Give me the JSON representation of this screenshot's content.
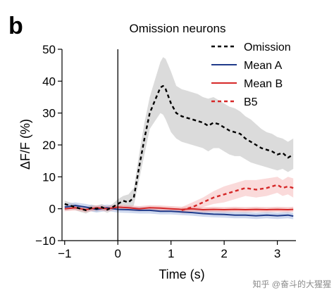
{
  "panel_letter": "b",
  "watermark": "知乎 @奋斗的大猩猩",
  "chart_data": {
    "type": "line",
    "title": "Omission neurons",
    "xlabel": "Time (s)",
    "ylabel": "ΔF/F (%)",
    "xlim": [
      -1.05,
      3.35
    ],
    "ylim": [
      -10,
      50
    ],
    "xticks": [
      -1,
      0,
      1,
      2,
      3
    ],
    "xtick_labels": [
      "−1",
      "0",
      "1",
      "2",
      "3"
    ],
    "yticks": [
      -10,
      0,
      10,
      20,
      30,
      40,
      50
    ],
    "ytick_labels": [
      "−10",
      "0",
      "10",
      "20",
      "30",
      "40",
      "50"
    ],
    "event_line_x": 0,
    "grid": false,
    "legend_position": "top-right",
    "series": [
      {
        "name": "Omission",
        "color": "#000000",
        "style": "dashed",
        "x": [
          -1.0,
          -0.9,
          -0.8,
          -0.7,
          -0.6,
          -0.5,
          -0.4,
          -0.3,
          -0.2,
          -0.1,
          0.0,
          0.1,
          0.2,
          0.3,
          0.4,
          0.5,
          0.6,
          0.7,
          0.8,
          0.85,
          0.9,
          1.0,
          1.1,
          1.2,
          1.3,
          1.4,
          1.5,
          1.6,
          1.7,
          1.8,
          1.9,
          2.0,
          2.1,
          2.2,
          2.3,
          2.4,
          2.5,
          2.6,
          2.7,
          2.8,
          2.9,
          3.0,
          3.1,
          3.2,
          3.3
        ],
        "values": [
          1.5,
          1.0,
          0.5,
          0.0,
          -0.5,
          0.3,
          0.0,
          0.5,
          -0.3,
          0.5,
          1.5,
          2.5,
          2.0,
          3.5,
          13.0,
          22.0,
          30.0,
          34.0,
          38.0,
          38.5,
          37.5,
          33.0,
          30.0,
          29.0,
          28.5,
          28.0,
          27.5,
          27.0,
          26.0,
          27.0,
          26.5,
          25.5,
          24.5,
          24.0,
          23.5,
          22.0,
          21.0,
          20.0,
          19.0,
          18.5,
          18.0,
          17.0,
          17.5,
          16.0,
          17.0
        ],
        "upper": [
          2.5,
          2.0,
          1.5,
          1.0,
          0.5,
          1.3,
          1.0,
          1.5,
          0.7,
          1.5,
          3.0,
          4.0,
          4.5,
          6.5,
          17.0,
          27.0,
          35.0,
          40.5,
          46.0,
          47.5,
          47.0,
          43.0,
          38.5,
          37.5,
          37.0,
          36.5,
          36.0,
          35.0,
          34.5,
          35.0,
          34.0,
          33.0,
          32.0,
          31.5,
          30.5,
          29.0,
          28.0,
          26.5,
          25.0,
          24.0,
          23.5,
          22.5,
          22.0,
          21.0,
          22.0
        ],
        "lower": [
          0.5,
          0.0,
          -0.5,
          -1.0,
          -1.5,
          -0.7,
          -1.0,
          -0.5,
          -1.3,
          -0.5,
          0.0,
          1.0,
          0.0,
          1.0,
          9.0,
          17.0,
          25.0,
          27.5,
          30.0,
          29.5,
          28.0,
          24.0,
          22.0,
          21.0,
          20.5,
          20.0,
          19.5,
          19.0,
          18.0,
          19.0,
          19.0,
          18.0,
          17.0,
          16.5,
          16.5,
          15.5,
          14.5,
          14.0,
          13.5,
          13.0,
          12.5,
          12.0,
          12.5,
          11.5,
          12.5
        ],
        "band_color": "#bdbdbd"
      },
      {
        "name": "Mean A",
        "color": "#1f3a8a",
        "style": "solid",
        "x": [
          -1.0,
          -0.8,
          -0.6,
          -0.4,
          -0.2,
          0.0,
          0.2,
          0.4,
          0.6,
          0.8,
          1.0,
          1.2,
          1.4,
          1.6,
          1.8,
          2.0,
          2.2,
          2.4,
          2.6,
          2.8,
          3.0,
          3.2,
          3.3
        ],
        "values": [
          0.5,
          1.0,
          0.5,
          -0.2,
          0.3,
          -0.2,
          -0.3,
          -0.5,
          -0.5,
          -0.8,
          -0.8,
          -1.0,
          -1.2,
          -1.5,
          -1.7,
          -1.8,
          -2.0,
          -2.0,
          -2.2,
          -2.0,
          -2.2,
          -2.0,
          -2.3
        ],
        "upper": [
          1.5,
          2.0,
          1.5,
          0.8,
          1.3,
          0.8,
          0.7,
          0.5,
          0.5,
          0.2,
          0.2,
          0.0,
          -0.2,
          -0.5,
          -0.7,
          -0.8,
          -1.0,
          -1.0,
          -1.2,
          -1.0,
          -1.2,
          -1.0,
          -1.3
        ],
        "lower": [
          -0.5,
          0.0,
          -0.5,
          -1.2,
          -0.7,
          -1.2,
          -1.3,
          -1.5,
          -1.5,
          -1.8,
          -1.8,
          -2.0,
          -2.2,
          -2.5,
          -2.7,
          -2.8,
          -3.0,
          -3.0,
          -3.2,
          -3.0,
          -3.2,
          -3.0,
          -3.3
        ],
        "band_color": "#9fb3e0"
      },
      {
        "name": "Mean B",
        "color": "#d62828",
        "style": "solid",
        "x": [
          -1.0,
          -0.8,
          -0.6,
          -0.4,
          -0.2,
          0.0,
          0.2,
          0.4,
          0.6,
          0.8,
          1.0,
          1.2,
          1.4,
          1.6,
          1.8,
          2.0,
          2.2,
          2.4,
          2.6,
          2.8,
          3.0,
          3.2,
          3.3
        ],
        "values": [
          0.0,
          0.3,
          -0.3,
          0.3,
          0.0,
          0.5,
          0.3,
          0.0,
          0.3,
          0.2,
          0.0,
          -0.2,
          0.0,
          -0.3,
          -0.2,
          -0.3,
          -0.2,
          -0.3,
          -0.2,
          -0.3,
          -0.2,
          -0.3,
          -0.2
        ],
        "upper": [
          0.8,
          1.1,
          0.5,
          1.1,
          0.8,
          1.3,
          1.1,
          0.8,
          1.1,
          1.0,
          0.8,
          0.6,
          0.8,
          0.5,
          0.6,
          0.5,
          0.6,
          0.5,
          0.6,
          0.5,
          0.6,
          0.5,
          0.6
        ],
        "lower": [
          -0.8,
          -0.5,
          -1.1,
          -0.5,
          -0.8,
          -0.3,
          -0.5,
          -0.8,
          -0.5,
          -0.6,
          -0.8,
          -1.0,
          -0.8,
          -1.1,
          -1.0,
          -1.1,
          -1.0,
          -1.1,
          -1.0,
          -1.1,
          -1.0,
          -1.1,
          -1.0
        ],
        "band_color": "#f0a0a0"
      },
      {
        "name": "B5",
        "color": "#d62828",
        "style": "dashed",
        "x": [
          1.2,
          1.4,
          1.6,
          1.8,
          2.0,
          2.2,
          2.4,
          2.6,
          2.8,
          3.0,
          3.1,
          3.2,
          3.3
        ],
        "values": [
          -0.5,
          0.5,
          2.0,
          3.5,
          4.5,
          5.5,
          6.5,
          6.0,
          6.5,
          7.5,
          6.5,
          7.0,
          6.5
        ],
        "upper": [
          0.5,
          2.0,
          3.5,
          5.5,
          7.0,
          8.0,
          9.0,
          9.0,
          9.5,
          10.0,
          9.0,
          10.0,
          9.5
        ],
        "lower": [
          -1.5,
          -1.0,
          0.5,
          1.5,
          2.0,
          3.0,
          4.0,
          3.5,
          4.0,
          5.0,
          4.0,
          4.5,
          3.5
        ],
        "band_color": "#f6b5b5"
      }
    ]
  }
}
